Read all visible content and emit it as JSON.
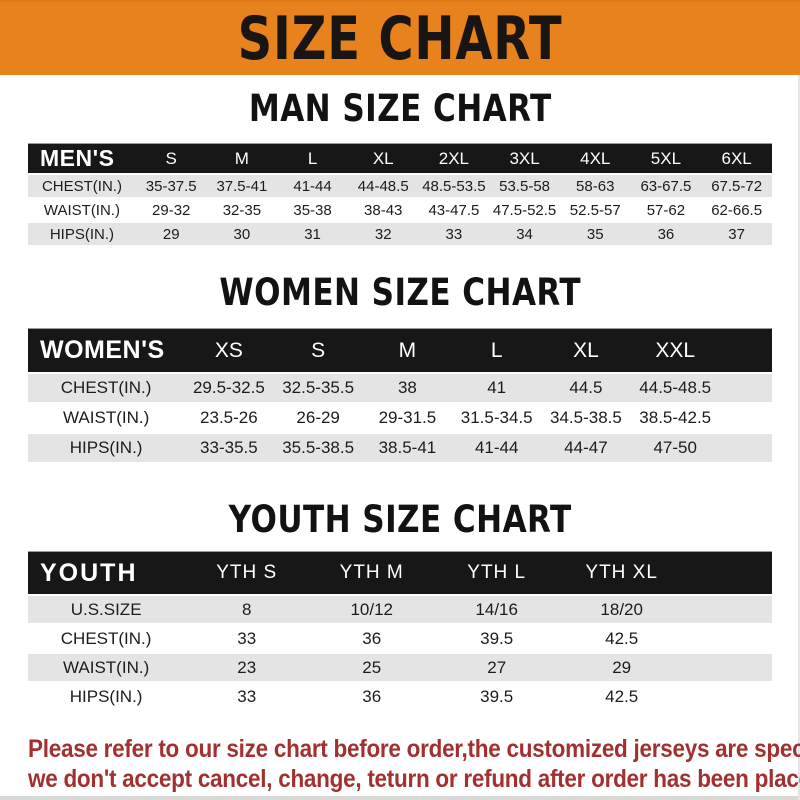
{
  "banner": {
    "title": "SIZE CHART",
    "bg_color": "#E8821C",
    "text_color": "#181512"
  },
  "sections": [
    {
      "title": "MAN SIZE CHART",
      "header_label": "MEN'S",
      "columns": [
        "S",
        "M",
        "L",
        "XL",
        "2XL",
        "3XL",
        "4XL",
        "5XL",
        "6XL"
      ],
      "rows": [
        {
          "label": "CHEST(IN.)",
          "values": [
            "35-37.5",
            "37.5-41",
            "41-44",
            "44-48.5",
            "48.5-53.5",
            "53.5-58",
            "58-63",
            "63-67.5",
            "67.5-72"
          ]
        },
        {
          "label": "WAIST(IN.)",
          "values": [
            "29-32",
            "32-35",
            "35-38",
            "38-43",
            "43-47.5",
            "47.5-52.5",
            "52.5-57",
            "57-62",
            "62-66.5"
          ]
        },
        {
          "label": "HIPS(IN.)",
          "values": [
            "29",
            "30",
            "31",
            "32",
            "33",
            "34",
            "35",
            "36",
            "37"
          ]
        }
      ]
    },
    {
      "title": "WOMEN SIZE CHART",
      "header_label": "WOMEN'S",
      "columns": [
        "XS",
        "S",
        "M",
        "L",
        "XL",
        "XXL"
      ],
      "rows": [
        {
          "label": "CHEST(IN.)",
          "values": [
            "29.5-32.5",
            "32.5-35.5",
            "38",
            "41",
            "44.5",
            "44.5-48.5"
          ]
        },
        {
          "label": "WAIST(IN.)",
          "values": [
            "23.5-26",
            "26-29",
            "29-31.5",
            "31.5-34.5",
            "34.5-38.5",
            "38.5-42.5"
          ]
        },
        {
          "label": "HIPS(IN.)",
          "values": [
            "33-35.5",
            "35.5-38.5",
            "38.5-41",
            "41-44",
            "44-47",
            "47-50"
          ]
        }
      ]
    },
    {
      "title": "YOUTH SIZE CHART",
      "header_label": "YOUTH",
      "columns": [
        "YTH S",
        "YTH M",
        "YTH L",
        "YTH XL"
      ],
      "rows": [
        {
          "label": "U.S.SIZE",
          "values": [
            "8",
            "10/12",
            "14/16",
            "18/20"
          ]
        },
        {
          "label": "CHEST(IN.)",
          "values": [
            "33",
            "36",
            "39.5",
            "42.5"
          ]
        },
        {
          "label": "WAIST(IN.)",
          "values": [
            "23",
            "25",
            "27",
            "29"
          ]
        },
        {
          "label": "HIPS(IN.)",
          "values": [
            "33",
            "36",
            "39.5",
            "42.5"
          ]
        }
      ]
    }
  ],
  "footer": {
    "line1": "Please refer to our size chart before order,the customized jerseys are special products,",
    "line2": "we don't accept cancel, change, teturn or refund after order has been placed!",
    "text_color": "#A33030"
  }
}
